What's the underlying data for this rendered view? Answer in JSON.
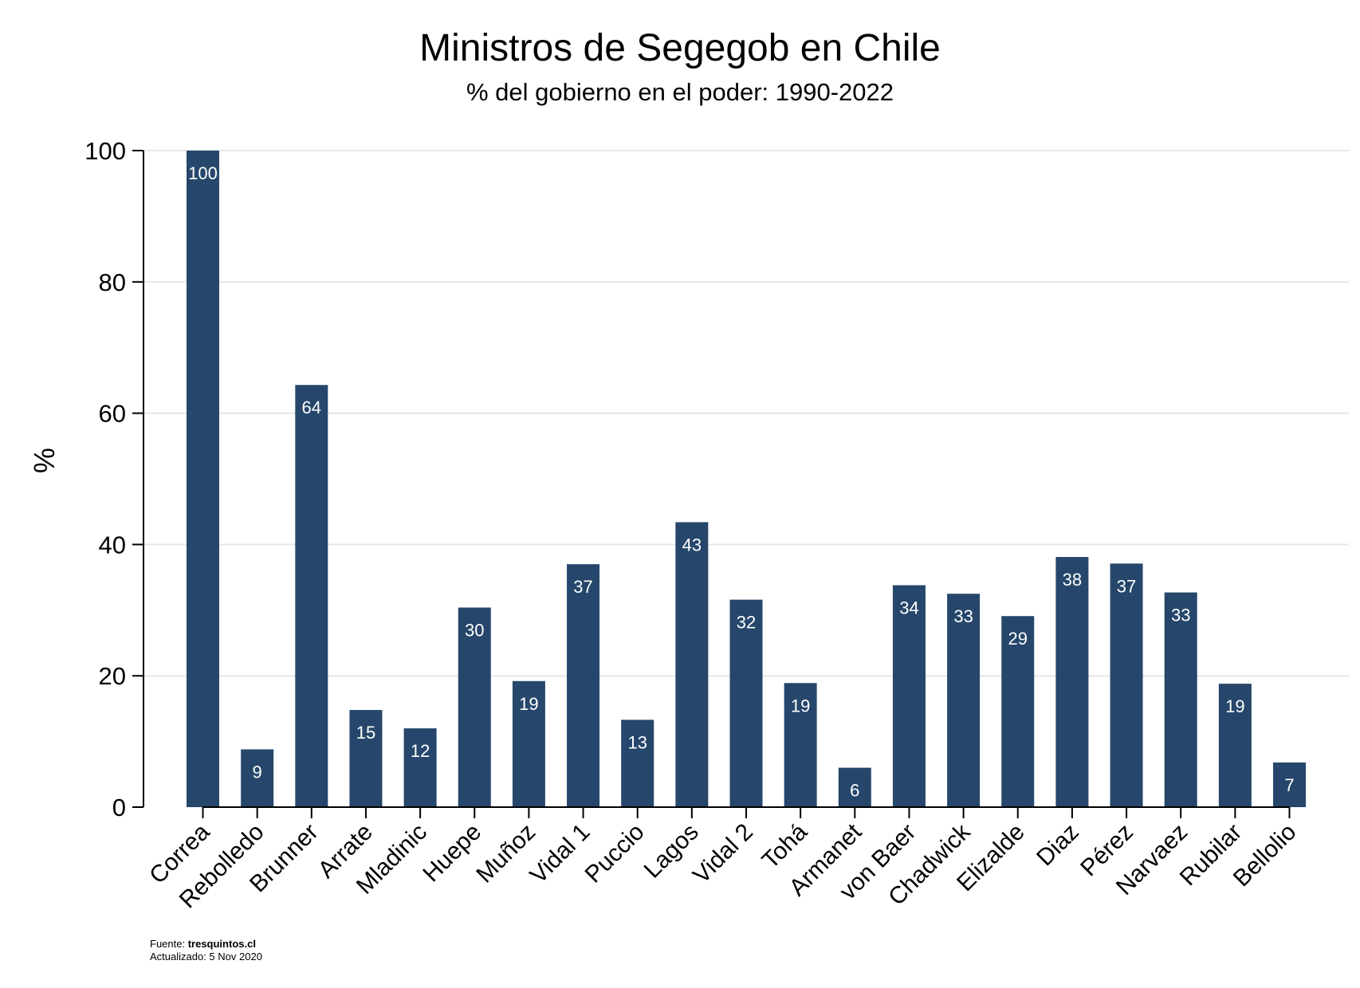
{
  "chart_data": {
    "type": "bar",
    "title": "Ministros de Segegob en Chile",
    "subtitle": "% del gobierno en el poder: 1990-2022",
    "ylabel": "%",
    "xlabel": "",
    "ylim": [
      0,
      100
    ],
    "yticks": [
      0,
      20,
      40,
      60,
      80,
      100
    ],
    "grid": true,
    "bar_color": "#26476b",
    "grid_color": "#e6e6e6",
    "categories": [
      "Correa",
      "Rebolledo",
      "Brunner",
      "Arrate",
      "Mladinic",
      "Huepe",
      "Muñoz",
      "Vidal 1",
      "Puccio",
      "Lagos",
      "Vidal 2",
      "Tohá",
      "Armanet",
      "von Baer",
      "Chadwick",
      "Elizalde",
      "Diaz",
      "Pérez",
      "Narvaez",
      "Rubilar",
      "Bellolio"
    ],
    "values": [
      100,
      8.8,
      64.3,
      14.8,
      12,
      30.4,
      19.2,
      37,
      13.3,
      43.4,
      31.6,
      18.9,
      6,
      33.8,
      32.5,
      29.1,
      38.1,
      37.1,
      32.7,
      18.8,
      6.8
    ],
    "labels": [
      "100",
      "9",
      "64",
      "15",
      "12",
      "30",
      "19",
      "37",
      "13",
      "43",
      "32",
      "19",
      "6",
      "34",
      "33",
      "29",
      "38",
      "37",
      "33",
      "19",
      "7"
    ]
  },
  "footer": {
    "source_label": "Fuente: ",
    "source_value": "tresquintos.cl",
    "updated": "Actualizado:  5 Nov 2020"
  }
}
